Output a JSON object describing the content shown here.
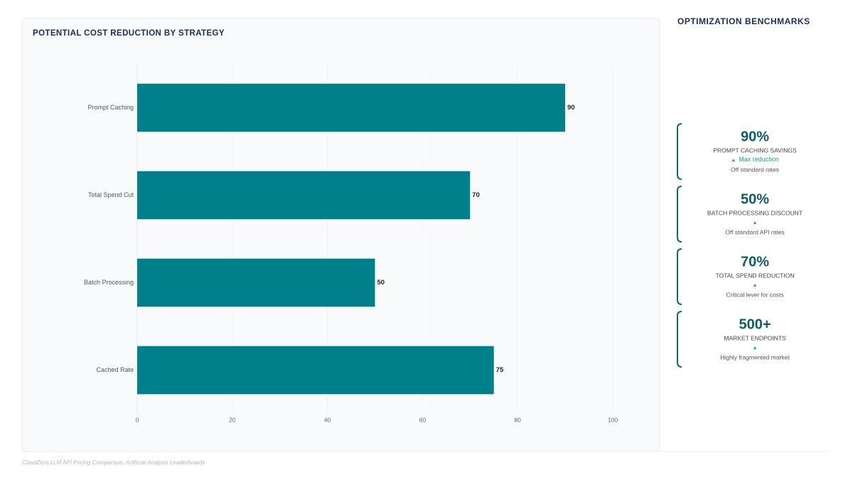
{
  "chart_data": {
    "type": "bar",
    "orientation": "horizontal",
    "title": "POTENTIAL COST REDUCTION BY STRATEGY",
    "categories": [
      "Prompt Caching",
      "Total Spend Cut",
      "Batch Processing",
      "Cached Rate"
    ],
    "values": [
      90,
      70,
      50,
      75
    ],
    "color": "#00808a",
    "xlim": [
      0,
      100
    ],
    "xticks": [
      0,
      20,
      40,
      60,
      80,
      100
    ],
    "grid": true
  },
  "benchmarks": {
    "title": "OPTIMIZATION BENCHMARKS",
    "cards": [
      {
        "value": "90%",
        "label": "PROMPT CACHING SAVINGS",
        "trend": "Max reduction",
        "note": "Off standard rates"
      },
      {
        "value": "50%",
        "label": "BATCH PROCESSING DISCOUNT",
        "note": "Off standard API rates"
      },
      {
        "value": "70%",
        "label": "TOTAL SPEND REDUCTION",
        "note": "Critical lever for costs"
      },
      {
        "value": "500+",
        "label": "MARKET ENDPOINTS",
        "note": "Highly fragmented market"
      }
    ]
  },
  "source": "CloudZero LLM API Pricing Comparison, Artificial Analysis Leaderboards"
}
